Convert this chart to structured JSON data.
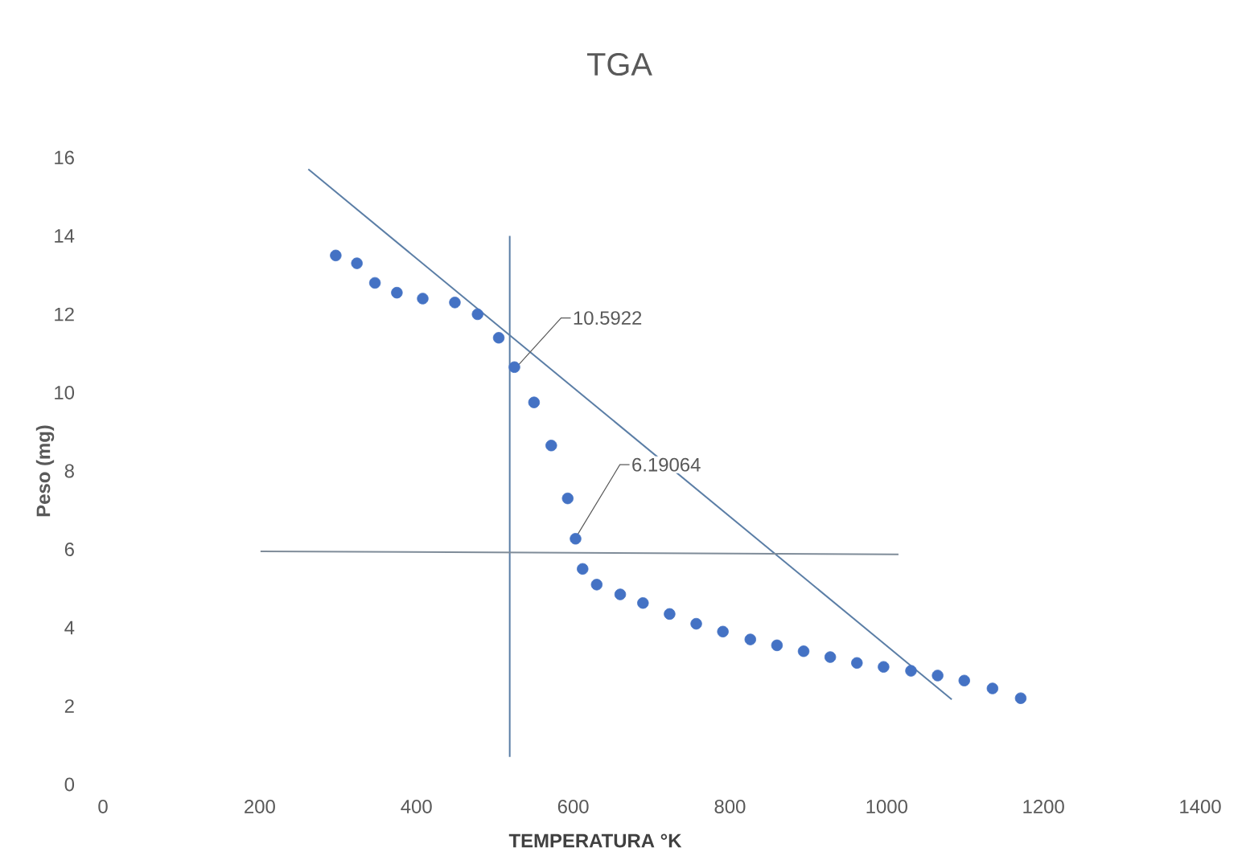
{
  "chart_data": {
    "type": "scatter",
    "title": "TGA",
    "xlabel": "TEMPERATURA °K",
    "ylabel": "Peso (mg)",
    "xlim": [
      0,
      1400
    ],
    "ylim": [
      0,
      16
    ],
    "xticks": [
      0,
      200,
      400,
      600,
      800,
      1000,
      1200,
      1400
    ],
    "yticks": [
      0,
      2,
      4,
      6,
      8,
      10,
      12,
      14,
      16
    ],
    "grid": false,
    "series": [
      {
        "marker": "circle",
        "color": "#4472c4",
        "x": [
          297,
          324,
          347,
          375,
          408,
          449,
          478,
          505,
          525,
          550,
          572,
          593,
          603,
          612,
          630,
          660,
          689,
          723,
          757,
          791,
          826,
          860,
          894,
          928,
          962,
          996,
          1031,
          1065,
          1099,
          1135,
          1171
        ],
        "values": [
          13.5,
          13.3,
          12.8,
          12.55,
          12.4,
          12.3,
          12.0,
          11.4,
          10.65,
          9.75,
          8.65,
          7.3,
          6.27,
          5.5,
          5.1,
          4.85,
          4.63,
          4.35,
          4.1,
          3.9,
          3.7,
          3.55,
          3.4,
          3.25,
          3.1,
          3.0,
          2.9,
          2.78,
          2.65,
          2.45,
          2.2
        ]
      },
      {
        "type": "line",
        "marker": "none",
        "color": "#5b7ea6",
        "x": [
          262,
          1083
        ],
        "values": [
          15.7,
          2.17
        ]
      },
      {
        "type": "line",
        "marker": "none",
        "color": "#5b7ea6",
        "x": [
          519,
          519
        ],
        "values": [
          14.0,
          0.7
        ]
      },
      {
        "type": "line",
        "marker": "none",
        "color": "#7f8c99",
        "x": [
          201,
          1015
        ],
        "values": [
          5.95,
          5.87
        ]
      }
    ],
    "annotations": [
      {
        "text": "10.5922",
        "x": 525,
        "y": 10.5922
      },
      {
        "text": "6.19064",
        "x": 600,
        "y": 6.19064
      }
    ]
  }
}
